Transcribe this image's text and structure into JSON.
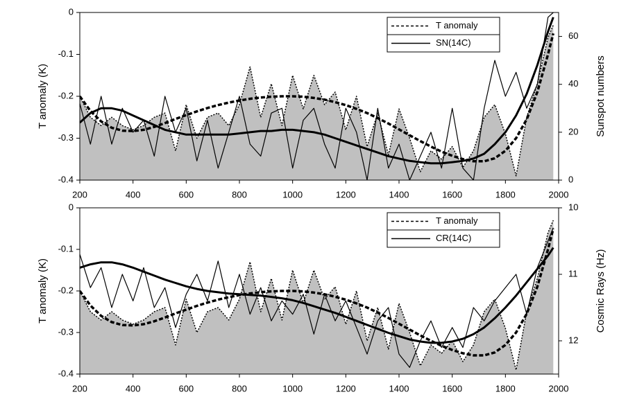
{
  "chart_data": [
    {
      "type": "line",
      "y_label": "T anomaly (K)",
      "y2_label": "Sunspot numbers",
      "x": [
        200,
        240,
        280,
        320,
        360,
        400,
        440,
        480,
        520,
        560,
        600,
        640,
        680,
        720,
        760,
        800,
        840,
        880,
        920,
        960,
        1000,
        1040,
        1080,
        1120,
        1160,
        1200,
        1240,
        1280,
        1320,
        1360,
        1400,
        1440,
        1480,
        1520,
        1560,
        1600,
        1640,
        1680,
        1720,
        1760,
        1800,
        1840,
        1880,
        1920,
        1960,
        1980
      ],
      "xlim": [
        200,
        2000
      ],
      "xticks": [
        200,
        400,
        600,
        800,
        1000,
        1200,
        1400,
        1600,
        1800,
        2000
      ],
      "ylim": [
        -0.4,
        0
      ],
      "yticks": [
        0,
        -0.1,
        -0.2,
        -0.3,
        -0.4
      ],
      "y2lim": [
        0,
        70
      ],
      "y2ticks": [
        0,
        20,
        40,
        60
      ],
      "legend": "upper right",
      "series": [
        {
          "name": "T anomaly",
          "color": "#000000",
          "style": "dotted",
          "fill": "#c0c0c0",
          "linewidth": 1.5,
          "values": [
            -0.2,
            -0.25,
            -0.27,
            -0.25,
            -0.27,
            -0.28,
            -0.27,
            -0.25,
            -0.24,
            -0.33,
            -0.22,
            -0.3,
            -0.25,
            -0.24,
            -0.27,
            -0.22,
            -0.13,
            -0.25,
            -0.17,
            -0.27,
            -0.15,
            -0.23,
            -0.15,
            -0.22,
            -0.19,
            -0.28,
            -0.2,
            -0.32,
            -0.24,
            -0.34,
            -0.23,
            -0.3,
            -0.38,
            -0.33,
            -0.35,
            -0.32,
            -0.37,
            -0.33,
            -0.25,
            -0.22,
            -0.29,
            -0.39,
            -0.25,
            -0.17,
            -0.06,
            -0.03
          ]
        },
        {
          "color": "#000000",
          "style": "dashed",
          "linewidth": 3.5,
          "values": [
            -0.2,
            -0.235,
            -0.26,
            -0.275,
            -0.282,
            -0.283,
            -0.28,
            -0.273,
            -0.264,
            -0.254,
            -0.245,
            -0.236,
            -0.228,
            -0.221,
            -0.215,
            -0.21,
            -0.206,
            -0.203,
            -0.201,
            -0.2,
            -0.2,
            -0.201,
            -0.204,
            -0.208,
            -0.214,
            -0.221,
            -0.23,
            -0.24,
            -0.252,
            -0.265,
            -0.279,
            -0.293,
            -0.307,
            -0.32,
            -0.332,
            -0.342,
            -0.35,
            -0.355,
            -0.355,
            -0.348,
            -0.33,
            -0.3,
            -0.255,
            -0.19,
            -0.1,
            -0.05
          ]
        },
        {
          "name": "SN(14C)",
          "color": "#000000",
          "style": "solid",
          "linewidth": 1.2,
          "axis": "y2",
          "values": [
            32,
            15,
            35,
            15,
            30,
            20,
            25,
            10,
            35,
            20,
            30,
            8,
            25,
            5,
            20,
            35,
            15,
            10,
            28,
            30,
            5,
            25,
            30,
            15,
            5,
            30,
            20,
            0,
            30,
            5,
            15,
            0,
            10,
            20,
            5,
            30,
            5,
            0,
            30,
            50,
            35,
            45,
            30,
            40,
            68,
            70
          ]
        },
        {
          "color": "#000000",
          "style": "solid",
          "linewidth": 3,
          "axis": "y2",
          "values": [
            24,
            28,
            30,
            30,
            29,
            27,
            25,
            23,
            21,
            20,
            19,
            19,
            19,
            19,
            19,
            19.5,
            20,
            20.5,
            20.5,
            21,
            21,
            20.5,
            20,
            19,
            17.5,
            16,
            14.5,
            13,
            11.5,
            10,
            9,
            8,
            7.5,
            7,
            7,
            7.5,
            8,
            9,
            11,
            15,
            20,
            27,
            36,
            48,
            62,
            68
          ]
        }
      ]
    },
    {
      "type": "line",
      "y_label": "T anomaly (K)",
      "y2_label": "Cosmic Rays (Hz)",
      "x": [
        200,
        240,
        280,
        320,
        360,
        400,
        440,
        480,
        520,
        560,
        600,
        640,
        680,
        720,
        760,
        800,
        840,
        880,
        920,
        960,
        1000,
        1040,
        1080,
        1120,
        1160,
        1200,
        1240,
        1280,
        1320,
        1360,
        1400,
        1440,
        1480,
        1520,
        1560,
        1600,
        1640,
        1680,
        1720,
        1760,
        1800,
        1840,
        1880,
        1920,
        1960,
        1980
      ],
      "xlim": [
        200,
        2000
      ],
      "xticks": [
        200,
        400,
        600,
        800,
        1000,
        1200,
        1400,
        1600,
        1800,
        2000
      ],
      "ylim": [
        -0.4,
        0
      ],
      "yticks": [
        0,
        -0.1,
        -0.2,
        -0.3,
        -0.4
      ],
      "y2lim": [
        12.5,
        10
      ],
      "y2ticks": [
        10,
        11,
        12
      ],
      "legend": "upper right",
      "series": [
        {
          "name": "T anomaly",
          "color": "#000000",
          "style": "dotted",
          "fill": "#c0c0c0",
          "linewidth": 1.5,
          "values": [
            -0.2,
            -0.25,
            -0.27,
            -0.25,
            -0.27,
            -0.28,
            -0.27,
            -0.25,
            -0.24,
            -0.33,
            -0.22,
            -0.3,
            -0.25,
            -0.24,
            -0.27,
            -0.22,
            -0.13,
            -0.25,
            -0.17,
            -0.27,
            -0.15,
            -0.23,
            -0.15,
            -0.22,
            -0.19,
            -0.28,
            -0.2,
            -0.32,
            -0.24,
            -0.34,
            -0.23,
            -0.3,
            -0.38,
            -0.33,
            -0.35,
            -0.32,
            -0.37,
            -0.33,
            -0.25,
            -0.22,
            -0.29,
            -0.39,
            -0.25,
            -0.17,
            -0.06,
            -0.03
          ]
        },
        {
          "color": "#000000",
          "style": "dashed",
          "linewidth": 3.5,
          "values": [
            -0.2,
            -0.235,
            -0.26,
            -0.275,
            -0.282,
            -0.283,
            -0.28,
            -0.273,
            -0.264,
            -0.254,
            -0.245,
            -0.236,
            -0.228,
            -0.221,
            -0.215,
            -0.21,
            -0.206,
            -0.203,
            -0.201,
            -0.2,
            -0.2,
            -0.201,
            -0.204,
            -0.208,
            -0.214,
            -0.221,
            -0.23,
            -0.24,
            -0.252,
            -0.265,
            -0.279,
            -0.293,
            -0.307,
            -0.32,
            -0.332,
            -0.342,
            -0.35,
            -0.355,
            -0.355,
            -0.348,
            -0.33,
            -0.3,
            -0.255,
            -0.19,
            -0.1,
            -0.05
          ]
        },
        {
          "name": "CR(14C)",
          "color": "#000000",
          "style": "solid",
          "linewidth": 1.2,
          "axis": "y2",
          "values": [
            10.7,
            11.2,
            10.9,
            11.5,
            11.0,
            11.4,
            10.9,
            11.5,
            11.2,
            11.8,
            11.3,
            11.0,
            11.4,
            10.8,
            11.5,
            11.0,
            11.6,
            11.2,
            11.7,
            11.4,
            11.6,
            11.3,
            11.9,
            11.3,
            11.7,
            11.4,
            11.8,
            12.2,
            11.7,
            11.5,
            12.2,
            12.4,
            12.0,
            11.7,
            12.1,
            11.8,
            12.1,
            11.5,
            11.7,
            11.4,
            11.2,
            11.0,
            11.6,
            10.9,
            10.5,
            10.3
          ]
        },
        {
          "color": "#000000",
          "style": "solid",
          "linewidth": 3,
          "axis": "y2",
          "values": [
            10.9,
            10.85,
            10.82,
            10.82,
            10.85,
            10.9,
            10.96,
            11.02,
            11.08,
            11.13,
            11.18,
            11.22,
            11.25,
            11.27,
            11.29,
            11.3,
            11.31,
            11.32,
            11.34,
            11.36,
            11.39,
            11.43,
            11.48,
            11.53,
            11.58,
            11.64,
            11.7,
            11.76,
            11.82,
            11.88,
            11.93,
            11.98,
            12.01,
            12.03,
            12.03,
            12.01,
            11.97,
            11.9,
            11.8,
            11.66,
            11.5,
            11.32,
            11.12,
            10.92,
            10.72,
            10.6
          ]
        }
      ]
    }
  ]
}
